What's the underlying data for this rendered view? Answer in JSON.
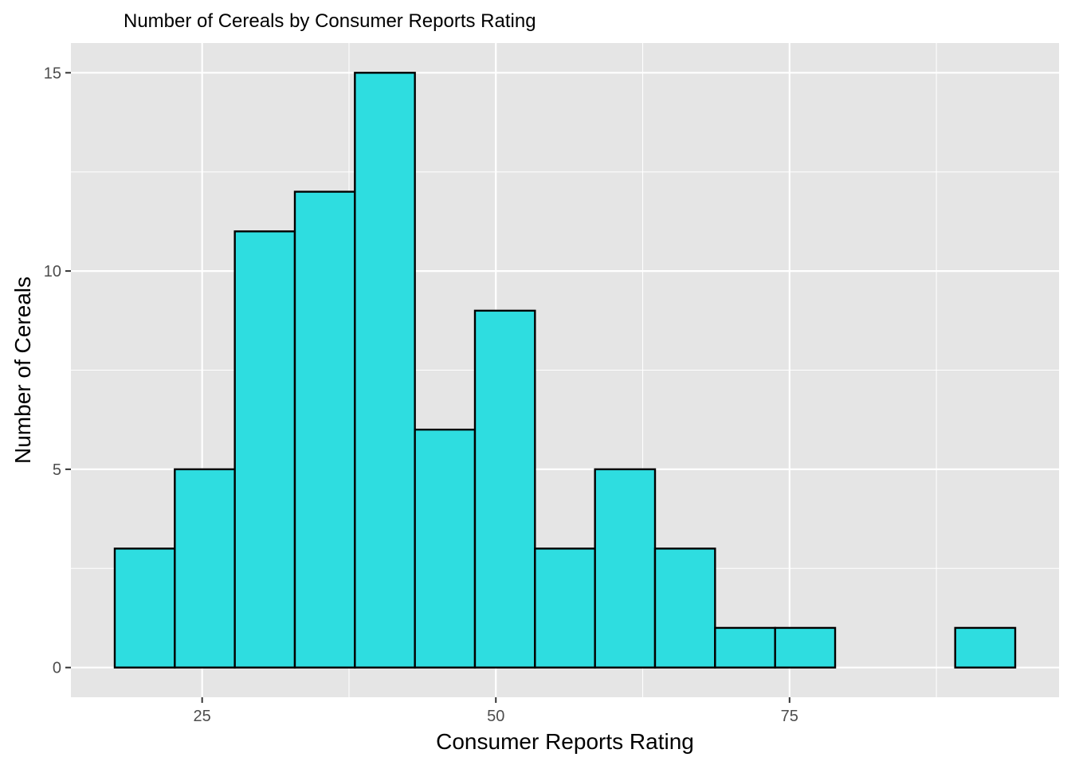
{
  "chart_data": {
    "type": "bar",
    "title": "Number of Cereals by Consumer Reports Rating",
    "xlabel": "Consumer Reports Rating",
    "ylabel": "Number of Cereals",
    "bins": [
      {
        "x0": 17.56,
        "x1": 22.67,
        "count": 3
      },
      {
        "x0": 22.67,
        "x1": 27.78,
        "count": 5
      },
      {
        "x0": 27.78,
        "x1": 32.89,
        "count": 11
      },
      {
        "x0": 32.89,
        "x1": 38.0,
        "count": 12
      },
      {
        "x0": 38.0,
        "x1": 43.11,
        "count": 15
      },
      {
        "x0": 43.11,
        "x1": 48.22,
        "count": 6
      },
      {
        "x0": 48.22,
        "x1": 53.33,
        "count": 9
      },
      {
        "x0": 53.33,
        "x1": 58.44,
        "count": 3
      },
      {
        "x0": 58.44,
        "x1": 63.55,
        "count": 5
      },
      {
        "x0": 63.55,
        "x1": 68.66,
        "count": 3
      },
      {
        "x0": 68.66,
        "x1": 73.77,
        "count": 1
      },
      {
        "x0": 73.77,
        "x1": 78.88,
        "count": 1
      },
      {
        "x0": 78.88,
        "x1": 83.99,
        "count": 0
      },
      {
        "x0": 83.99,
        "x1": 89.1,
        "count": 0
      },
      {
        "x0": 89.1,
        "x1": 94.21,
        "count": 1
      }
    ],
    "xlim": [
      13.83,
      97.94
    ],
    "ylim": [
      -0.75,
      15.75
    ],
    "x_ticks": [
      25,
      50,
      75
    ],
    "y_ticks": [
      0,
      5,
      10,
      15
    ],
    "grid": true,
    "legend": "none",
    "colors": {
      "bar_fill": "#2edde0",
      "bar_stroke": "#000000",
      "panel_bg": "#e5e5e5",
      "grid": "#ffffff",
      "tick_text": "#4d4d4d"
    }
  }
}
